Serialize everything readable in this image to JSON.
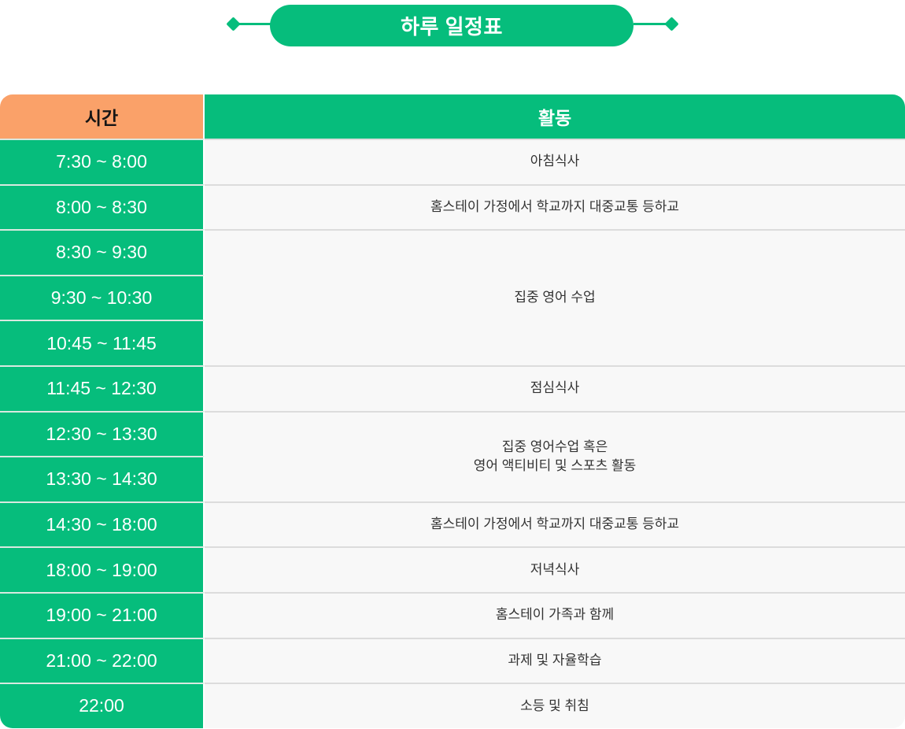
{
  "title": {
    "text": "하루 일정표"
  },
  "table": {
    "headers": {
      "time": "시간",
      "activity": "활동"
    },
    "times": [
      "7:30 ~ 8:00",
      "8:00 ~ 8:30",
      "8:30 ~ 9:30",
      "9:30 ~ 10:30",
      "10:45 ~ 11:45",
      "11:45 ~ 12:30",
      "12:30 ~ 13:30",
      "13:30 ~ 14:30",
      "14:30 ~ 18:00",
      "18:00 ~ 19:00",
      "19:00 ~ 21:00",
      "21:00 ~ 22:00",
      "22:00"
    ],
    "activities": [
      {
        "label": "아침식사",
        "rowspan": 1
      },
      {
        "label": "홈스테이 가정에서 학교까지 대중교통 등하교",
        "rowspan": 1
      },
      {
        "label": "집중 영어 수업",
        "rowspan": 3
      },
      {
        "label": "점심식사",
        "rowspan": 1
      },
      {
        "label": "집중 영어수업 혹은\n영어 액티비티 및 스포츠 활동",
        "rowspan": 2
      },
      {
        "label": "홈스테이 가정에서 학교까지 대중교통 등하교",
        "rowspan": 1
      },
      {
        "label": "저녁식사",
        "rowspan": 1
      },
      {
        "label": "홈스테이 가족과 함께",
        "rowspan": 1
      },
      {
        "label": "과제 및 자율학습",
        "rowspan": 1
      },
      {
        "label": "소등 및 취침",
        "rowspan": 1
      }
    ]
  },
  "colors": {
    "green": "#06BD7C",
    "orange": "#FAA169",
    "row_bg": "#F8F8F8",
    "separator": "#DCDCDC"
  }
}
